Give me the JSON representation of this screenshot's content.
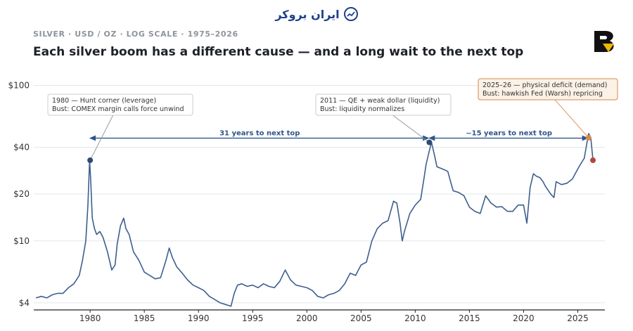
{
  "header": {
    "brand_name": "ایران بروکر",
    "brand_icon": "chart-trend-icon",
    "kicker": "SILVER  ·  USD / OZ  ·  LOG SCALE  ·  1975–2026",
    "logo_icon": "b-monogram-logo"
  },
  "chart_data": {
    "type": "line",
    "title": "Each silver boom has a different cause — and a long wait to the next top",
    "xlabel": "",
    "ylabel": "",
    "y_scale": "log",
    "xlim": [
      1974.8,
      2027.5
    ],
    "ylim": [
      3.6,
      125
    ],
    "x_ticks": [
      1980,
      1985,
      1990,
      1995,
      2000,
      2005,
      2010,
      2015,
      2020,
      2025
    ],
    "y_ticks": [
      4,
      10,
      20,
      40,
      100
    ],
    "y_tick_labels": [
      "$4",
      "$10",
      "$20",
      "$40",
      "$100"
    ],
    "grid": "horizontal",
    "colors": {
      "line": "#3d5f8f",
      "peak_marker": "#2d4a75",
      "recent_top_marker": "#d68a4a",
      "latest_marker": "#b5473a",
      "span_arrow": "#2f5589",
      "callout_border": "#d68a4a",
      "callout_fill": "#fbf1e6"
    },
    "series": [
      {
        "x": [
          1975.0,
          1975.5,
          1976.0,
          1976.5,
          1977.0,
          1977.5,
          1978.0,
          1978.5,
          1979.0,
          1979.3,
          1979.6,
          1979.8,
          1979.95,
          1980.05,
          1980.2,
          1980.4,
          1980.6,
          1980.9,
          1981.2,
          1981.6,
          1982.0,
          1982.3,
          1982.5,
          1982.8,
          1983.1,
          1983.3,
          1983.6,
          1984.0,
          1984.5,
          1985.0,
          1985.5,
          1986.0,
          1986.5,
          1987.0,
          1987.3,
          1987.6,
          1988.0,
          1988.5,
          1989.0,
          1989.5,
          1990.0,
          1990.5,
          1991.0,
          1991.5,
          1992.0,
          1992.5,
          1993.0,
          1993.3,
          1993.6,
          1994.0,
          1994.5,
          1995.0,
          1995.5,
          1996.0,
          1996.5,
          1997.0,
          1997.5,
          1998.0,
          1998.5,
          1999.0,
          1999.5,
          2000.0,
          2000.5,
          2001.0,
          2001.5,
          2002.0,
          2002.5,
          2003.0,
          2003.5,
          2004.0,
          2004.5,
          2005.0,
          2005.5,
          2006.0,
          2006.5,
          2007.0,
          2007.5,
          2008.0,
          2008.3,
          2008.6,
          2008.8,
          2009.0,
          2009.5,
          2010.0,
          2010.5,
          2010.8,
          2011.0,
          2011.3,
          2011.5,
          2011.8,
          2012.0,
          2012.5,
          2013.0,
          2013.5,
          2014.0,
          2014.5,
          2015.0,
          2015.5,
          2016.0,
          2016.5,
          2017.0,
          2017.5,
          2018.0,
          2018.5,
          2019.0,
          2019.5,
          2020.0,
          2020.3,
          2020.6,
          2020.9,
          2021.2,
          2021.5,
          2021.8,
          2022.0,
          2022.5,
          2022.8,
          2023.0,
          2023.5,
          2024.0,
          2024.5,
          2025.0,
          2025.3,
          2025.6,
          2025.8,
          2026.0,
          2026.2,
          2026.4
        ],
        "y": [
          4.3,
          4.4,
          4.3,
          4.5,
          4.6,
          4.6,
          5.0,
          5.3,
          6.0,
          7.5,
          10.0,
          17.0,
          33.0,
          25.0,
          14.0,
          12.0,
          11.0,
          11.5,
          10.5,
          8.5,
          6.5,
          7.0,
          9.5,
          12.5,
          14.0,
          12.0,
          11.0,
          8.5,
          7.5,
          6.3,
          6.0,
          5.7,
          5.8,
          7.5,
          9.0,
          7.8,
          6.8,
          6.2,
          5.6,
          5.2,
          5.0,
          4.8,
          4.4,
          4.2,
          4.0,
          3.9,
          3.8,
          4.6,
          5.2,
          5.3,
          5.1,
          5.2,
          5.0,
          5.3,
          5.1,
          5.0,
          5.5,
          6.5,
          5.6,
          5.2,
          5.1,
          5.0,
          4.8,
          4.4,
          4.3,
          4.5,
          4.6,
          4.8,
          5.3,
          6.2,
          6.0,
          7.0,
          7.3,
          10.0,
          12.0,
          13.0,
          13.5,
          18.0,
          17.5,
          13.0,
          10.0,
          11.5,
          15.0,
          17.0,
          18.5,
          25.0,
          31.0,
          38.0,
          43.0,
          35.0,
          30.0,
          29.0,
          28.0,
          21.0,
          20.5,
          19.5,
          16.5,
          15.5,
          15.0,
          19.5,
          17.5,
          16.5,
          16.6,
          15.5,
          15.5,
          17.0,
          17.0,
          13.0,
          22.0,
          27.0,
          26.0,
          25.5,
          24.0,
          22.5,
          20.0,
          19.0,
          24.0,
          23.0,
          23.5,
          25.0,
          29.0,
          31.5,
          34.0,
          41.0,
          49.0,
          46.0,
          33.0
        ]
      }
    ],
    "markers": [
      {
        "x": 1980.0,
        "y": 33.0,
        "role": "1980 peak"
      },
      {
        "x": 2011.3,
        "y": 43.0,
        "role": "2011 peak"
      },
      {
        "x": 2026.0,
        "y": 46.0,
        "role": "2025–26 top"
      },
      {
        "x": 2026.4,
        "y": 33.0,
        "role": "latest"
      }
    ],
    "annotations": [
      {
        "line1": "1980 — Hunt corner (leverage)",
        "line2": "Bust: COMEX margin calls force unwind",
        "points_to": 0
      },
      {
        "line1": "2011 — QE + weak dollar (liquidity)",
        "line2": "Bust: liquidity normalizes",
        "points_to": 1
      },
      {
        "line1": "2025–26 — physical deficit (demand)",
        "line2": "Bust: hawkish Fed (Warsh) repricing",
        "points_to": 2
      }
    ],
    "spans": [
      {
        "label": "31 years to next top",
        "from": 1980.0,
        "to": 2011.3,
        "at_y": 60
      },
      {
        "label": "~15 years to next top",
        "from": 2011.3,
        "to": 2026.0,
        "at_y": 60
      }
    ]
  }
}
